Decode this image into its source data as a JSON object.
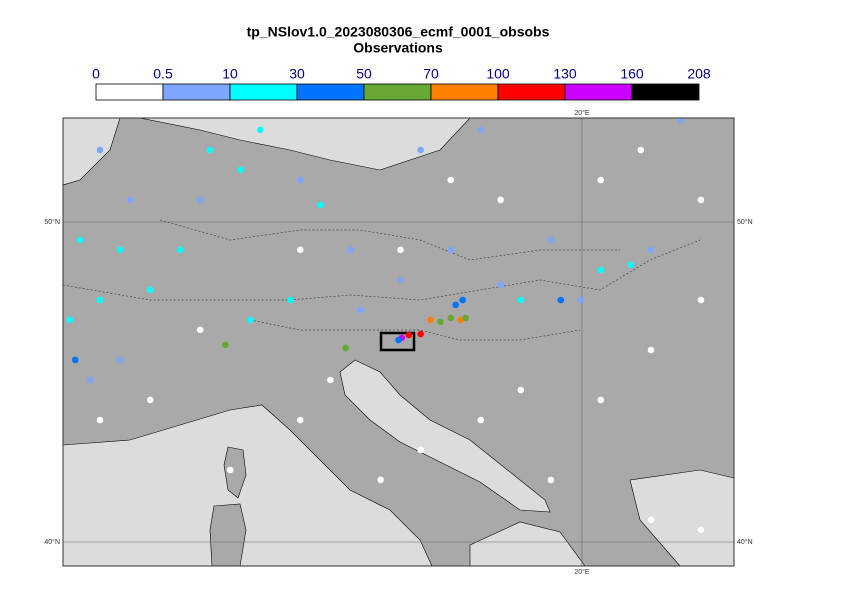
{
  "title": "tp_NSlov1.0_2023080306_ecmf_0001_obsobs",
  "subtitle": "Observations",
  "colorbar": {
    "bounds": [
      0,
      0.5,
      10,
      30,
      50,
      70,
      100,
      130,
      160,
      208
    ],
    "colors": [
      "#ffffff",
      "#7ea6ff",
      "#00ffff",
      "#0073ff",
      "#66a832",
      "#ff8000",
      "#ff0000",
      "#cc00ff",
      "#000000"
    ]
  },
  "map": {
    "lonlim": [
      4.3,
      24.6
    ],
    "latlim": [
      39.25,
      53.25
    ],
    "lonticks": [
      {
        "value": 20,
        "label": "20°E"
      }
    ],
    "latticks": [
      {
        "value": 50,
        "label": "50°N"
      },
      {
        "value": 40,
        "label": "40°N"
      }
    ]
  },
  "observations": {
    "lon": [
      14.55,
      14.76,
      15.12,
      14.45,
      15.42,
      15.72,
      16.03,
      16.33,
      16.48,
      16.18,
      16.39,
      12.85,
      9.21,
      19.36,
      4.67,
      4.82,
      6.03,
      6.94,
      5.42,
      10.27,
      8.75,
      11.18,
      9.97,
      18.15,
      20.57,
      21.48,
      4.51,
      7.85,
      9.67,
      12.09,
      5.42,
      11.48,
      15.12,
      16.94,
      13.0,
      16.03,
      19.06,
      22.09,
      14.51,
      17.54,
      6.03,
      5.12,
      8.45,
      6.33,
      19.97,
      13.3,
      22.99,
      5.42,
      6.94,
      8.45,
      12.39,
      11.48,
      15.12,
      16.94,
      20.57,
      22.09,
      23.6,
      19.06,
      22.09,
      23.6,
      11.48,
      17.54,
      20.57,
      23.6,
      14.51,
      16.03,
      21.78,
      9.36,
      13.91,
      18.15
    ],
    "lat": [
      46.38,
      46.47,
      46.5,
      46.31,
      46.94,
      46.88,
      47.0,
      46.94,
      47.0,
      47.41,
      47.56,
      46.06,
      46.16,
      47.56,
      45.69,
      49.44,
      49.13,
      47.88,
      47.56,
      52.88,
      52.25,
      47.56,
      46.94,
      47.56,
      48.5,
      48.66,
      46.94,
      49.13,
      51.63,
      50.53,
      52.25,
      51.31,
      52.25,
      52.88,
      49.13,
      49.13,
      49.44,
      49.13,
      48.19,
      48.03,
      45.69,
      45.06,
      50.69,
      50.69,
      47.56,
      47.25,
      53.19,
      43.81,
      44.44,
      46.63,
      45.06,
      43.81,
      42.88,
      43.81,
      44.44,
      46.0,
      47.56,
      41.94,
      40.69,
      40.38,
      49.13,
      50.69,
      51.31,
      50.69,
      49.13,
      51.31,
      52.25,
      42.25,
      41.94,
      44.75
    ],
    "values": [
      140,
      110,
      105,
      40,
      85,
      60,
      55,
      80,
      60,
      40,
      45,
      55,
      52,
      35,
      40,
      15,
      15,
      15,
      15,
      15,
      15,
      15,
      15,
      15,
      15,
      15,
      15,
      15,
      15,
      15,
      5,
      5,
      5,
      5,
      5,
      5,
      5,
      5,
      5,
      5,
      5,
      5,
      5,
      5,
      5,
      5,
      5,
      0,
      0,
      0,
      0,
      0,
      0,
      0,
      0,
      0,
      0,
      0,
      0,
      0,
      0,
      0,
      0,
      0,
      0,
      0,
      0,
      0,
      0,
      0
    ]
  }
}
